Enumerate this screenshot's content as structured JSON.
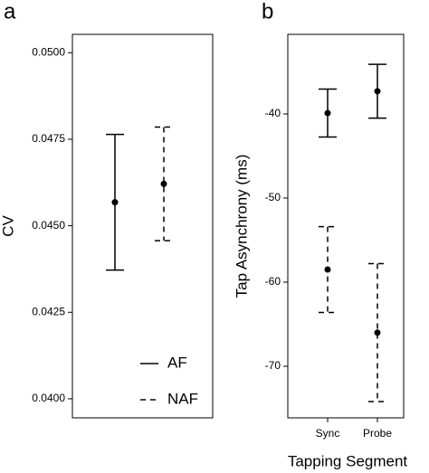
{
  "chart_data": [
    {
      "type": "errorbar",
      "panel_label": "a",
      "ylabel": "CV",
      "categories": [
        null,
        null
      ],
      "ylim": [
        0.03945,
        0.05053
      ],
      "yticks": [
        {
          "value": 0.04,
          "label": "0.0400"
        },
        {
          "value": 0.0425,
          "label": "0.0425"
        },
        {
          "value": 0.045,
          "label": "0.0450"
        },
        {
          "value": 0.0475,
          "label": "0.0475"
        },
        {
          "value": 0.05,
          "label": "0.0500"
        }
      ],
      "legend": "lower right",
      "series": [
        {
          "name": "AF",
          "dash": "solid",
          "color": "#000000",
          "values": [
            0.04568,
            null
          ],
          "errors": [
            0.00196,
            null
          ]
        },
        {
          "name": "NAF",
          "dash": "dashed",
          "color": "#000000",
          "values": [
            null,
            0.04621
          ],
          "errors": [
            null,
            0.00164
          ]
        }
      ]
    },
    {
      "type": "errorbar",
      "panel_label": "b",
      "ylabel": "Tap Asynchrony (ms)",
      "xlabel": "Tapping Segment",
      "categories": [
        "Sync",
        "Probe"
      ],
      "ylim": [
        -76.13,
        -30.54
      ],
      "yticks": [
        -70,
        -60,
        -50,
        -40
      ],
      "series": [
        {
          "dash": "solid",
          "color": "#000000",
          "values": [
            -39.9,
            -37.3
          ],
          "errors": [
            2.85,
            3.2
          ]
        },
        {
          "dash": "dashed",
          "color": "#000000",
          "values": [
            -58.5,
            -66.0
          ],
          "errors": [
            5.1,
            8.2
          ]
        }
      ]
    }
  ]
}
